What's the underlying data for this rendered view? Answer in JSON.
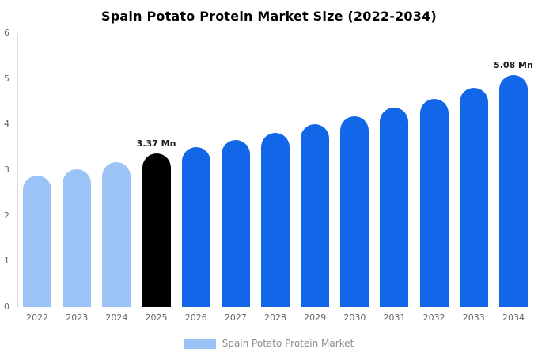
{
  "chart_data": {
    "type": "bar",
    "title": "Spain Potato Protein Market Size (2022-2034)",
    "categories": [
      "2022",
      "2023",
      "2024",
      "2025",
      "2026",
      "2027",
      "2028",
      "2029",
      "2030",
      "2031",
      "2032",
      "2033",
      "2034"
    ],
    "values": [
      2.88,
      3.02,
      3.17,
      3.37,
      3.5,
      3.66,
      3.82,
      4.0,
      4.18,
      4.37,
      4.57,
      4.8,
      5.08
    ],
    "unit": "Mn",
    "ylim": [
      0,
      6
    ],
    "yticks": [
      0,
      1,
      2,
      3,
      4,
      5,
      6
    ],
    "bar_colors": [
      "#9cc3f7",
      "#9cc3f7",
      "#9cc3f7",
      "#000000",
      "#1266e8",
      "#1266e8",
      "#1266e8",
      "#1266e8",
      "#1266e8",
      "#1266e8",
      "#1266e8",
      "#1266e8",
      "#1266e8"
    ],
    "annotations": [
      {
        "category": "2025",
        "text": "3.37 Mn"
      },
      {
        "category": "2034",
        "text": "5.08 Mn"
      }
    ],
    "legend_label": "Spain Potato Protein Market",
    "legend_swatch_color": "#9cc3f7",
    "xlabel": "",
    "ylabel": "",
    "grid": false,
    "legend_position": "bottom"
  }
}
